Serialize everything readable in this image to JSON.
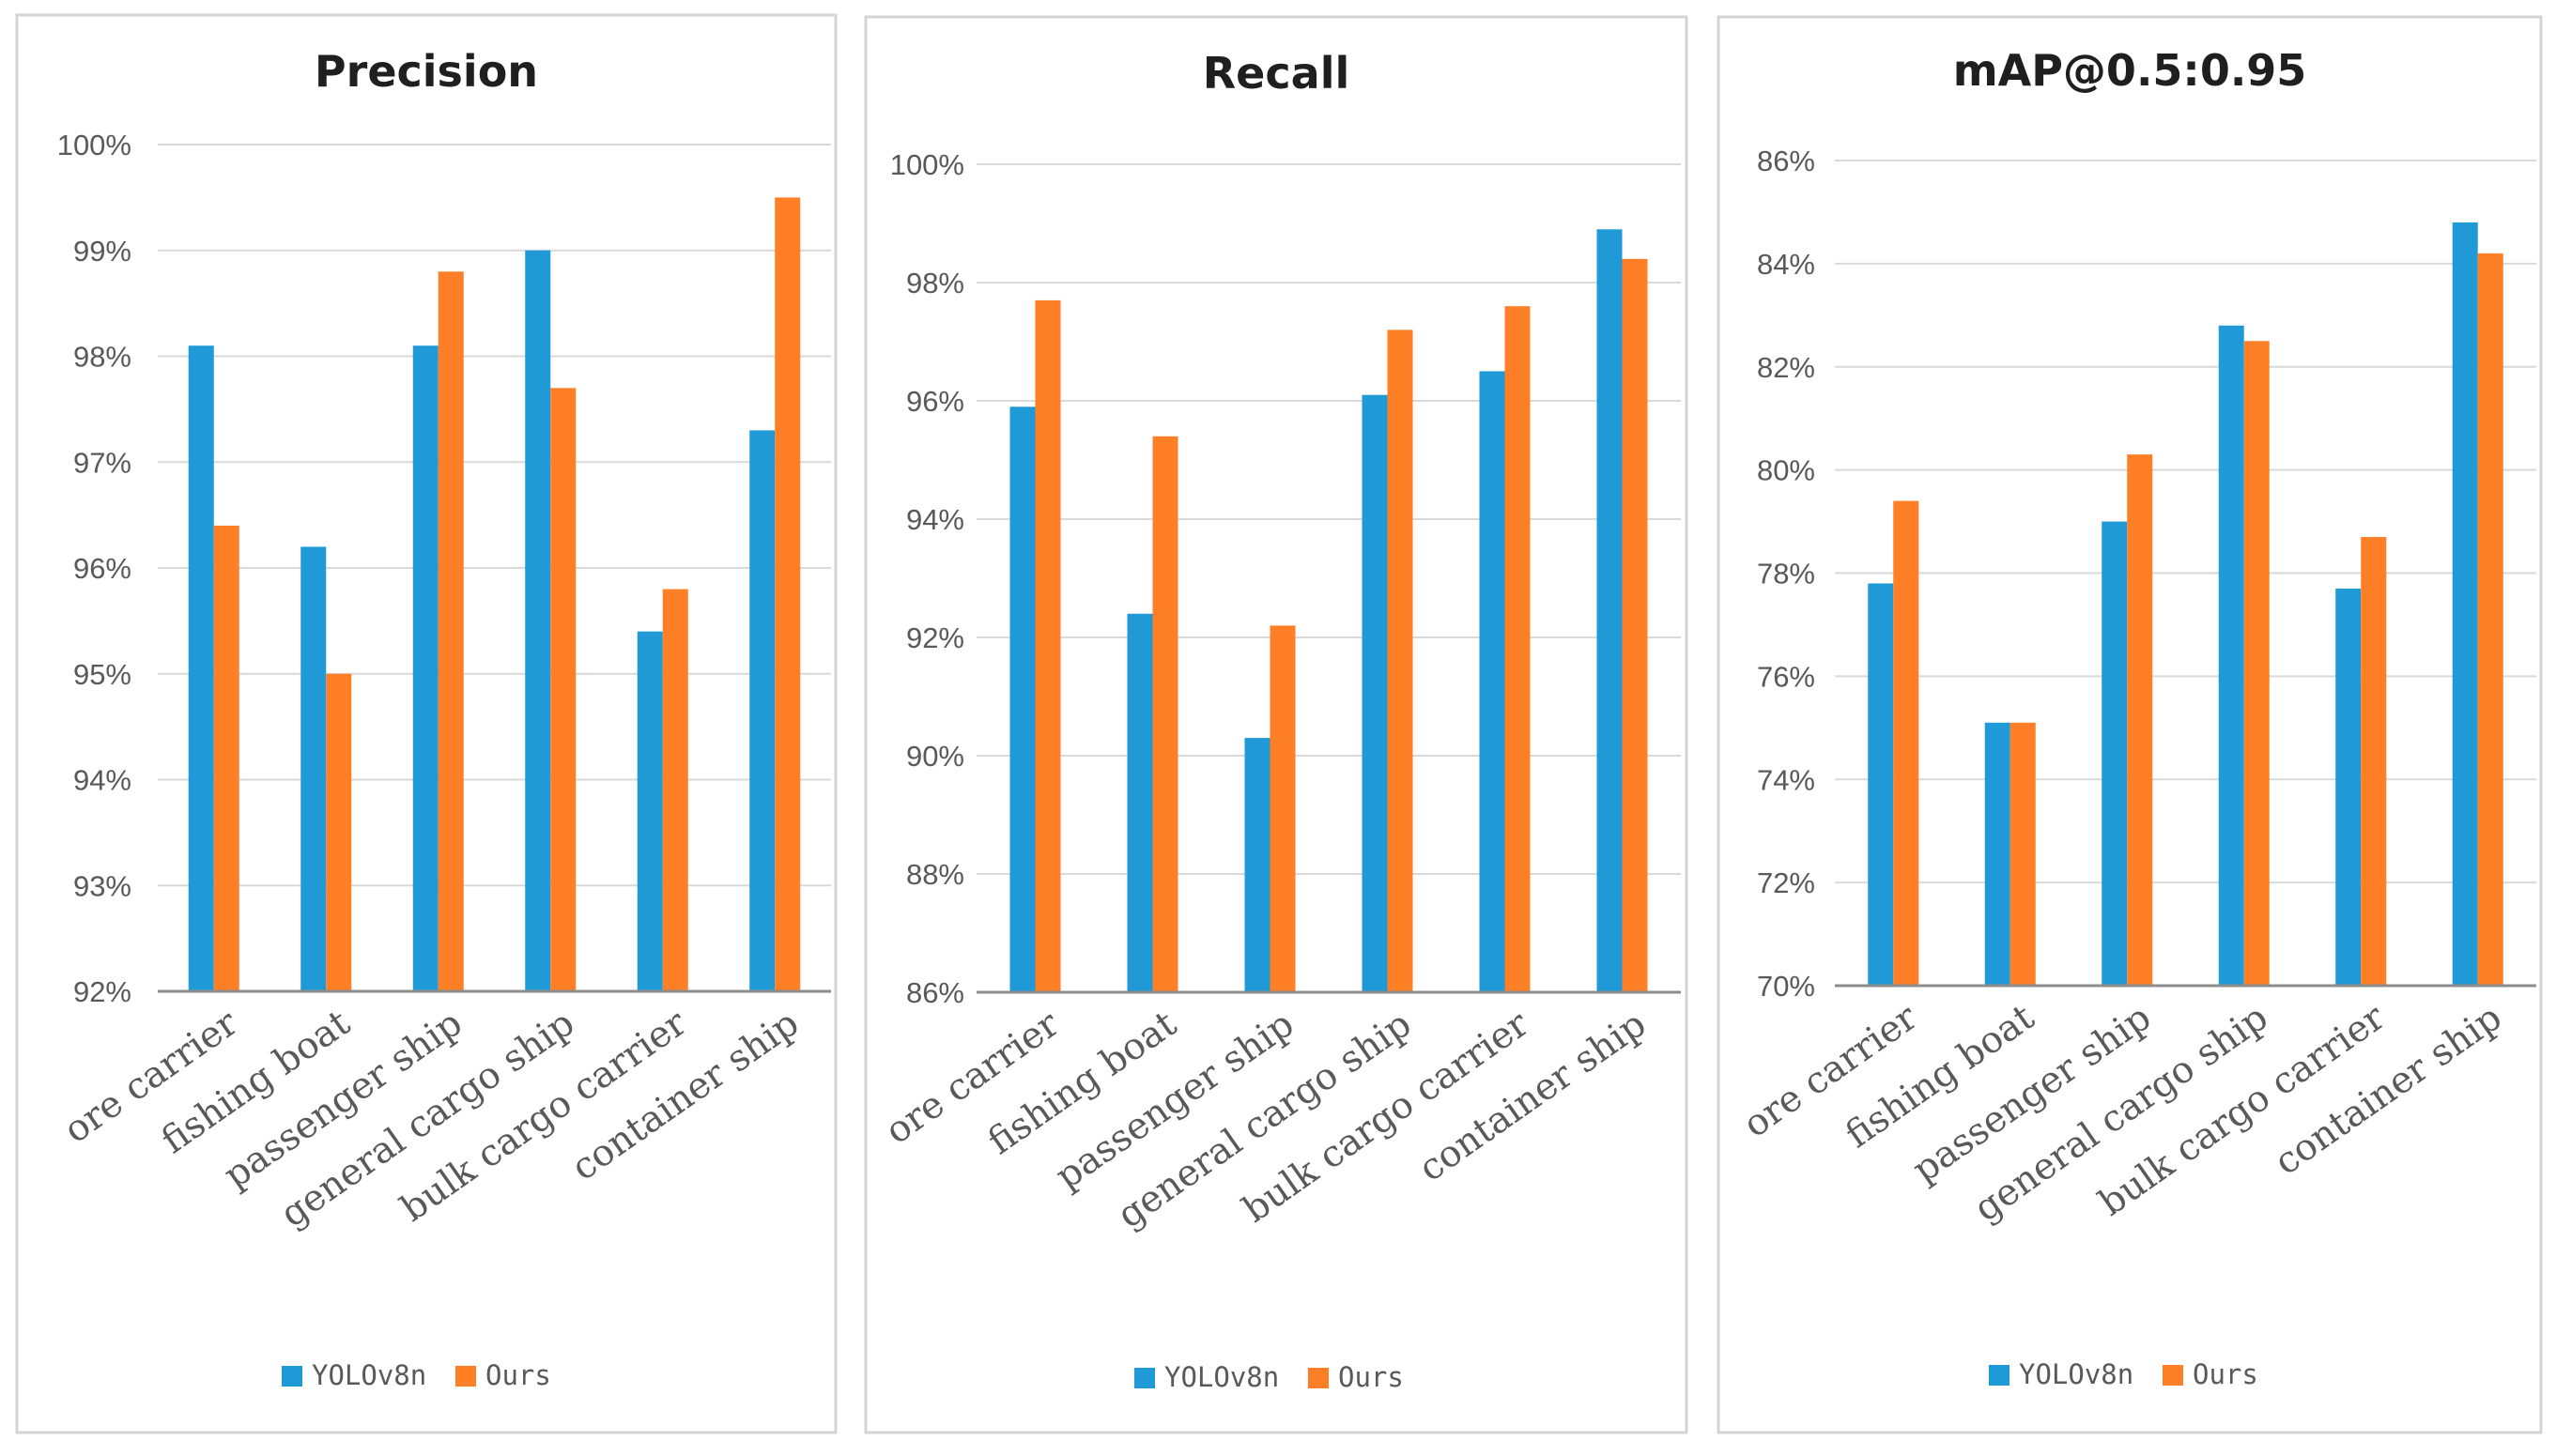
{
  "chart_data": [
    {
      "type": "bar",
      "title": "Precision",
      "categories": [
        "ore carrier",
        "fishing boat",
        "passenger ship",
        "general cargo ship",
        "bulk cargo carrier",
        "container ship"
      ],
      "series": [
        {
          "name": "YOLOv8n",
          "color": "#1f9ad6",
          "values": [
            98.1,
            96.2,
            98.1,
            99.0,
            95.4,
            97.3
          ]
        },
        {
          "name": "Ours",
          "color": "#ff7f27",
          "values": [
            96.4,
            95.0,
            98.8,
            97.7,
            95.8,
            99.5
          ]
        }
      ],
      "ylim": [
        92,
        100
      ],
      "yticks": [
        92,
        93,
        94,
        95,
        96,
        97,
        98,
        99,
        100
      ],
      "ytick_labels": [
        "92%",
        "93%",
        "94%",
        "95%",
        "96%",
        "97%",
        "98%",
        "99%",
        "100%"
      ],
      "grid": true,
      "legend": "bottom"
    },
    {
      "type": "bar",
      "title": "Recall",
      "categories": [
        "ore carrier",
        "fishing boat",
        "passenger ship",
        "general cargo ship",
        "bulk cargo carrier",
        "container ship"
      ],
      "series": [
        {
          "name": "YOLOv8n",
          "color": "#1f9ad6",
          "values": [
            95.9,
            92.4,
            90.3,
            96.1,
            96.5,
            98.9
          ]
        },
        {
          "name": "Ours",
          "color": "#ff7f27",
          "values": [
            97.7,
            95.4,
            92.2,
            97.2,
            97.6,
            98.4
          ]
        }
      ],
      "ylim": [
        86,
        100
      ],
      "yticks": [
        86,
        88,
        90,
        92,
        94,
        96,
        98,
        100
      ],
      "ytick_labels": [
        "86%",
        "88%",
        "90%",
        "92%",
        "94%",
        "96%",
        "98%",
        "100%"
      ],
      "grid": true,
      "legend": "bottom"
    },
    {
      "type": "bar",
      "title": "mAP@0.5:0.95",
      "categories": [
        "ore carrier",
        "fishing boat",
        "passenger ship",
        "general cargo ship",
        "bulk cargo carrier",
        "container ship"
      ],
      "series": [
        {
          "name": "YOLOv8n",
          "color": "#1f9ad6",
          "values": [
            77.8,
            75.1,
            79.0,
            82.8,
            77.7,
            84.8
          ]
        },
        {
          "name": "Ours",
          "color": "#ff7f27",
          "values": [
            79.4,
            75.1,
            80.3,
            82.5,
            78.7,
            84.2
          ]
        }
      ],
      "ylim": [
        70,
        86
      ],
      "yticks": [
        70,
        72,
        74,
        76,
        78,
        80,
        82,
        84,
        86
      ],
      "ytick_labels": [
        "70%",
        "72%",
        "74%",
        "76%",
        "78%",
        "80%",
        "82%",
        "84%",
        "86%"
      ],
      "grid": true,
      "legend": "bottom"
    }
  ]
}
